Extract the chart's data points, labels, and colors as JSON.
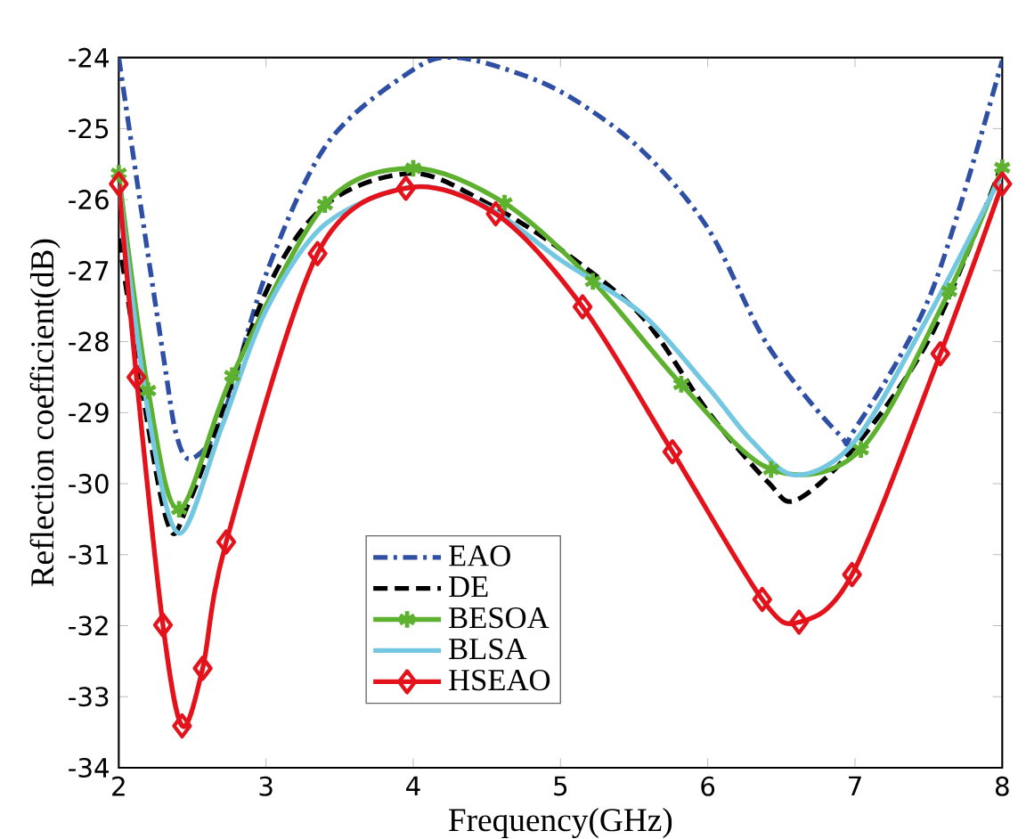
{
  "chart_data": {
    "type": "line",
    "xlabel": "Frequency(GHz)",
    "ylabel": "Reflection coefficient(dB)",
    "xlim": [
      2,
      8
    ],
    "ylim": [
      -34,
      -24
    ],
    "xticks": [
      2,
      3,
      4,
      5,
      6,
      7,
      8
    ],
    "yticks": [
      -34,
      -33,
      -32,
      -31,
      -30,
      -29,
      -28,
      -27,
      -26,
      -25,
      -24
    ],
    "legend": "bottom",
    "grid": false,
    "series": [
      {
        "name": "EAO",
        "color": "#2e4fa3",
        "line_style": "dashdot",
        "marker": "none",
        "x": [
          2,
          2.15,
          2.31,
          2.39,
          2.49,
          2.7,
          3,
          3.42,
          4,
          4.3,
          4.75,
          5.1,
          5.55,
          6,
          6.41,
          6.89,
          7,
          7.52,
          8
        ],
        "values": [
          -24,
          -26.1,
          -28.3,
          -29.3,
          -29.65,
          -29.1,
          -27.05,
          -25.2,
          -24.17,
          -24,
          -24.25,
          -24.6,
          -25.3,
          -26.4,
          -28.06,
          -29.3,
          -29.23,
          -27.3,
          -24.04
        ]
      },
      {
        "name": "DE",
        "color": "#000000",
        "line_style": "dashed",
        "marker": "none",
        "x": [
          2,
          2.31,
          2.49,
          3,
          3.42,
          4,
          4.5,
          5,
          5.55,
          6,
          6.41,
          6.6,
          7,
          7.52,
          8
        ],
        "values": [
          -26.55,
          -30.4,
          -30.2,
          -27.3,
          -26.05,
          -25.63,
          -26.05,
          -26.7,
          -27.64,
          -28.98,
          -29.98,
          -30.23,
          -29.48,
          -27.9,
          -25.5
        ]
      },
      {
        "name": "BESOA",
        "color": "#5db12f",
        "line_style": "solid",
        "marker": "cross",
        "x": [
          2,
          2.2,
          2.41,
          2.77,
          3.4,
          4,
          4.62,
          5.22,
          5.82,
          6.43,
          7.04,
          7.64,
          8
        ],
        "values": [
          -25.63,
          -28.69,
          -30.36,
          -28.48,
          -26.07,
          -25.56,
          -26.05,
          -27.15,
          -28.6,
          -29.8,
          -29.52,
          -27.29,
          -25.55
        ]
      },
      {
        "name": "BLSA",
        "color": "#74c7e0",
        "line_style": "solid",
        "marker": "none",
        "x": [
          2,
          2.2,
          2.41,
          2.7,
          3,
          3.4,
          4,
          4.5,
          5,
          5.55,
          6,
          6.3,
          6.6,
          7,
          7.52,
          8
        ],
        "values": [
          -25.8,
          -29.0,
          -30.7,
          -29.2,
          -27.56,
          -26.35,
          -25.82,
          -26.1,
          -26.85,
          -27.6,
          -28.64,
          -29.4,
          -29.88,
          -29.4,
          -27.56,
          -25.63
        ]
      },
      {
        "name": "HSEAO",
        "color": "#e3121b",
        "line_style": "solid",
        "marker": "diamond",
        "x": [
          2,
          2.12,
          2.3,
          2.43,
          2.57,
          2.73,
          3.35,
          3.95,
          4.56,
          5.15,
          5.76,
          6.37,
          6.62,
          6.98,
          7.58,
          8
        ],
        "values": [
          -25.78,
          -28.5,
          -31.99,
          -33.41,
          -32.6,
          -30.82,
          -26.76,
          -25.84,
          -26.2,
          -27.51,
          -29.55,
          -31.63,
          -31.95,
          -31.28,
          -28.17,
          -25.78
        ]
      }
    ]
  }
}
